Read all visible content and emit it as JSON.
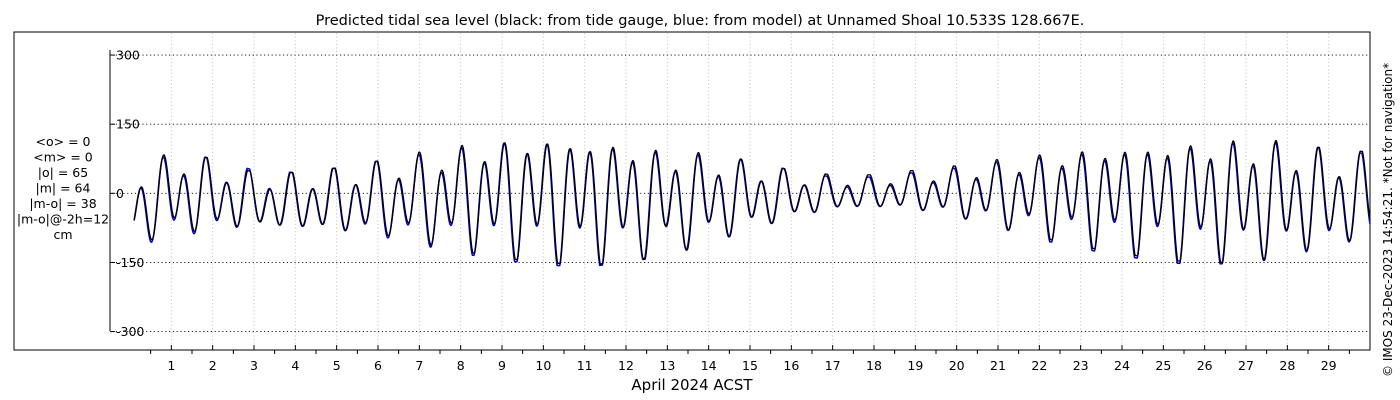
{
  "chart_data": {
    "type": "line",
    "title": "Predicted tidal sea level (black: from tide gauge, blue: from model) at Unnamed Shoal 10.533S 128.667E.",
    "xlabel": "April 2024 ACST",
    "ylabel": "",
    "xlim": [
      0.0,
      30.0
    ],
    "ylim": [
      -340,
      350
    ],
    "yticks": [
      -300,
      -150,
      0,
      150,
      300
    ],
    "ytick_labels": [
      "-300",
      "-150",
      "0",
      "150",
      "300"
    ],
    "xticks": [
      1,
      2,
      3,
      4,
      5,
      6,
      7,
      8,
      9,
      10,
      11,
      12,
      13,
      14,
      15,
      16,
      17,
      18,
      19,
      20,
      21,
      22,
      23,
      24,
      25,
      26,
      27,
      28,
      29
    ],
    "grid": true,
    "stats": [
      "<o> = 0",
      "<m> = 0",
      "|o| = 65",
      "|m| = 64",
      "|m-o| = 38",
      "|m-o|@-2h=12",
      "cm"
    ],
    "side_note": "© IMOS 23-Dec-2023 14:54:21. *Not for navigation*",
    "series": [
      {
        "color": "#000000",
        "x": [
          0.1,
          1.0,
          2.0,
          3.0,
          4.0,
          5.0,
          6.0,
          7.0,
          8.0,
          9.0,
          10.0,
          11.0,
          12.0,
          13.0,
          14.0,
          15.0,
          16.0,
          17.0,
          18.0,
          19.0,
          20.0,
          21.0,
          22.0,
          23.0,
          24.0,
          25.0,
          26.0,
          27.0,
          28.0,
          29.0,
          30.0
        ],
        "high": [
          40,
          95,
          75,
          45,
          45,
          55,
          70,
          90,
          110,
          125,
          135,
          130,
          120,
          100,
          90,
          70,
          50,
          40,
          40,
          50,
          60,
          75,
          90,
          105,
          115,
          120,
          125,
          125,
          115,
          95,
          90
        ],
        "low": [
          -110,
          -95,
          -85,
          -80,
          -85,
          -90,
          -95,
          -110,
          -125,
          -140,
          -150,
          -155,
          -150,
          -135,
          -110,
          -85,
          -60,
          -40,
          -35,
          -40,
          -55,
          -75,
          -95,
          -115,
          -130,
          -145,
          -150,
          -150,
          -140,
          -120,
          -110
        ]
      },
      {
        "color": "#0000c8",
        "x": [
          0.1,
          1.0,
          2.0,
          3.0,
          4.0,
          5.0,
          6.0,
          7.0,
          8.0,
          9.0,
          10.0,
          11.0,
          12.0,
          13.0,
          14.0,
          15.0,
          16.0,
          17.0,
          18.0,
          19.0,
          20.0,
          21.0,
          22.0,
          23.0,
          24.0,
          25.0,
          26.0,
          27.0,
          28.0,
          29.0,
          30.0
        ],
        "high": [
          40,
          90,
          75,
          50,
          45,
          55,
          70,
          85,
          105,
          125,
          135,
          130,
          115,
          95,
          85,
          70,
          50,
          35,
          35,
          45,
          55,
          70,
          85,
          100,
          110,
          115,
          120,
          120,
          110,
          95,
          85
        ],
        "low": [
          -115,
          -100,
          -90,
          -80,
          -85,
          -90,
          -100,
          -115,
          -130,
          -145,
          -155,
          -160,
          -150,
          -130,
          -110,
          -85,
          -60,
          -40,
          -35,
          -40,
          -55,
          -75,
          -100,
          -120,
          -135,
          -150,
          -155,
          -150,
          -140,
          -125,
          -110
        ]
      }
    ]
  }
}
